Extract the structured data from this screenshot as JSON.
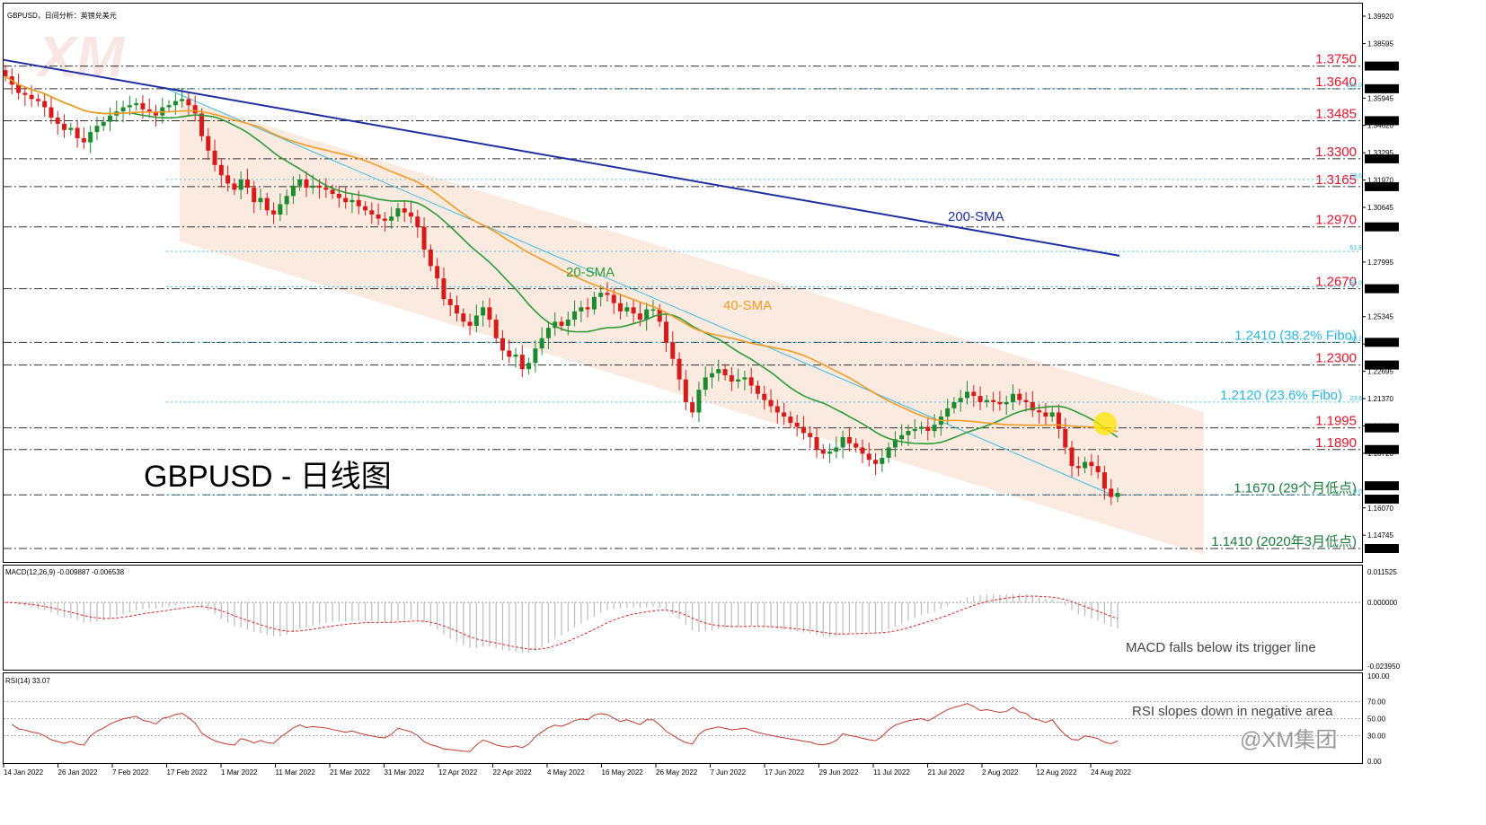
{
  "chart_data": {
    "type": "candlestick",
    "title": "GBPUSD，日间分析：英镑兑美元",
    "big_label": "GBPUSD - 日线图",
    "watermark": "XM",
    "x_ticks": [
      "14 Jan 2022",
      "26 Jan 2022",
      "7 Feb 2022",
      "17 Feb 2022",
      "1 Mar 2022",
      "11 Mar 2022",
      "21 Mar 2022",
      "31 Mar 2022",
      "12 Apr 2022",
      "22 Apr 2022",
      "4 May 2022",
      "16 May 2022",
      "26 May 2022",
      "7 Jun 2022",
      "17 Jun 2022",
      "29 Jun 2022",
      "11 Jul 2022",
      "21 Jul 2022",
      "2 Aug 2022",
      "12 Aug 2022",
      "24 Aug 2022"
    ],
    "price_axis": {
      "range": [
        1.1392,
        1.3992
      ],
      "ticks": [
        "1.39920",
        "1.38595",
        "1.35945",
        "1.34620",
        "1.33295",
        "1.31970",
        "1.30645",
        "1.27995",
        "1.25345",
        "1.24020",
        "1.22695",
        "1.21370",
        "1.20045",
        "1.18720",
        "1.16070",
        "1.14745"
      ],
      "boxed": [
        "1.37500",
        "1.36400",
        "1.34850",
        "1.33000",
        "1.31650",
        "1.29700",
        "1.26700",
        "1.24100",
        "1.23000",
        "1.19950",
        "1.18900",
        "1.17142",
        "1.16493",
        "1.14100"
      ]
    },
    "levels": [
      {
        "price": 1.375,
        "label": "1.3750",
        "color": "#e0162b",
        "style": "dashdot"
      },
      {
        "price": 1.364,
        "label": "1.3640",
        "color": "#e0162b",
        "style": "dashdot"
      },
      {
        "price": 1.3485,
        "label": "1.3485",
        "color": "#e0162b",
        "style": "dashdot"
      },
      {
        "price": 1.33,
        "label": "1.3300",
        "color": "#e0162b",
        "style": "dashdot"
      },
      {
        "price": 1.3165,
        "label": "1.3165",
        "color": "#e0162b",
        "style": "dashdot"
      },
      {
        "price": 1.297,
        "label": "1.2970",
        "color": "#e0162b",
        "style": "dashdot"
      },
      {
        "price": 1.267,
        "label": "1.2670",
        "color": "#e0162b",
        "style": "dashdot"
      },
      {
        "price": 1.241,
        "label": "1.2410 (38.2% Fibo)",
        "color": "#29b6e0",
        "style": "dashdot"
      },
      {
        "price": 1.23,
        "label": "1.2300",
        "color": "#e0162b",
        "style": "dashdot"
      },
      {
        "price": 1.1995,
        "label": "1.1995",
        "color": "#e0162b",
        "style": "dashdot"
      },
      {
        "price": 1.189,
        "label": "1.1890",
        "color": "#e0162b",
        "style": "dashdot"
      },
      {
        "price": 1.167,
        "label": "1.1670 (29个月低点)",
        "color": "#1a7a3a",
        "style": "dashdot"
      },
      {
        "price": 1.141,
        "label": "1.1410 (2020年3月低点)",
        "color": "#1a7a3a",
        "style": "dashdot"
      }
    ],
    "fibo": [
      {
        "price": 1.364,
        "label": "100.0"
      },
      {
        "price": 1.32,
        "label": "78.6"
      },
      {
        "price": 1.2851,
        "label": "61.8"
      },
      {
        "price": 1.2679,
        "label": "50.0"
      },
      {
        "price": 1.241,
        "label": "38.2"
      },
      {
        "price": 1.212,
        "label": "23.6",
        "text": "1.2120 (23.6% Fibo)"
      },
      {
        "price": 1.167,
        "label": "0.0"
      }
    ],
    "closes": [
      1.37,
      1.366,
      1.362,
      1.361,
      1.359,
      1.358,
      1.355,
      1.35,
      1.347,
      1.344,
      1.345,
      1.34,
      1.338,
      1.343,
      1.346,
      1.348,
      1.351,
      1.353,
      1.355,
      1.356,
      1.357,
      1.354,
      1.353,
      1.351,
      1.355,
      1.356,
      1.358,
      1.359,
      1.356,
      1.352,
      1.341,
      1.334,
      1.327,
      1.322,
      1.318,
      1.315,
      1.32,
      1.316,
      1.309,
      1.311,
      1.305,
      1.303,
      1.308,
      1.312,
      1.317,
      1.32,
      1.316,
      1.317,
      1.316,
      1.315,
      1.313,
      1.311,
      1.309,
      1.31,
      1.307,
      1.305,
      1.303,
      1.301,
      1.3,
      1.302,
      1.306,
      1.304,
      1.302,
      1.297,
      1.286,
      1.278,
      1.272,
      1.262,
      1.259,
      1.255,
      1.251,
      1.249,
      1.254,
      1.258,
      1.252,
      1.243,
      1.237,
      1.234,
      1.235,
      1.228,
      1.231,
      1.238,
      1.243,
      1.248,
      1.251,
      1.249,
      1.252,
      1.256,
      1.258,
      1.257,
      1.263,
      1.265,
      1.264,
      1.26,
      1.256,
      1.258,
      1.255,
      1.252,
      1.257,
      1.257,
      1.251,
      1.241,
      1.233,
      1.223,
      1.212,
      1.207,
      1.218,
      1.224,
      1.226,
      1.228,
      1.225,
      1.222,
      1.223,
      1.224,
      1.22,
      1.216,
      1.213,
      1.21,
      1.207,
      1.205,
      1.202,
      1.2,
      1.197,
      1.195,
      1.189,
      1.187,
      1.188,
      1.19,
      1.195,
      1.192,
      1.19,
      1.187,
      1.184,
      1.182,
      1.185,
      1.19,
      1.194,
      1.196,
      1.198,
      1.199,
      1.2,
      1.198,
      1.201,
      1.205,
      1.209,
      1.212,
      1.214,
      1.217,
      1.215,
      1.212,
      1.213,
      1.212,
      1.211,
      1.212,
      1.216,
      1.213,
      1.212,
      1.208,
      1.207,
      1.205,
      1.207,
      1.199,
      1.19,
      1.181,
      1.18,
      1.183,
      1.181,
      1.178,
      1.17,
      1.166,
      1.168
    ],
    "sma_lines": [
      {
        "name": "20-SMA",
        "color": "#2e9b3a",
        "width": 1.6
      },
      {
        "name": "40-SMA",
        "color": "#f59a23",
        "width": 1.6
      }
    ],
    "sma200": {
      "name": "200-SMA",
      "color": "#1f2ea0",
      "start": 1.378,
      "end": 1.283
    },
    "channel": {
      "top_start": 1.359,
      "top_end": 1.207,
      "bottom_start": 1.29,
      "bottom_end": 1.138,
      "color": "#f5d9c4"
    },
    "macd": {
      "header": "MACD(12,26,9) -0.009887 -0.006538",
      "range": [
        -0.02395,
        0.01152
      ],
      "ticks": [
        "0.011525",
        "0.000000",
        "-0.023950"
      ],
      "note": "MACD falls below its trigger line",
      "signal_color": "#d22"
    },
    "rsi": {
      "header": "RSI(14) 33.07",
      "range": [
        0,
        100
      ],
      "ticks": [
        "100.00",
        "70.00",
        "50.00",
        "30.00",
        "0.00"
      ],
      "note": "RSI slopes down in negative area",
      "line_color": "#c0392b"
    },
    "branding": "@XM集团"
  }
}
